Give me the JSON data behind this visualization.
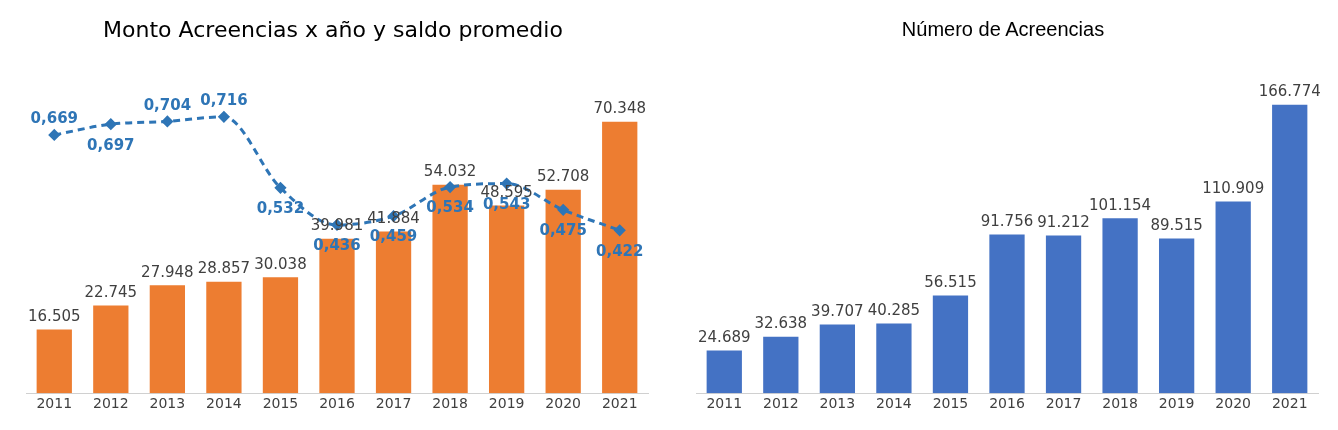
{
  "chart_data": [
    {
      "type": "bar",
      "title": "Monto Acreencias x año y saldo promedio",
      "categories": [
        "2011",
        "2012",
        "2013",
        "2014",
        "2015",
        "2016",
        "2017",
        "2018",
        "2019",
        "2020",
        "2021"
      ],
      "tick_labels": "x",
      "grid": false,
      "legend": false,
      "series": [
        {
          "color": "#ed7d31",
          "values": [
            16505,
            22745,
            27948,
            28857,
            30038,
            39981,
            41884,
            54032,
            48595,
            52708,
            70348
          ],
          "value_labels": [
            "16.505",
            "22.745",
            "27.948",
            "28.857",
            "30.038",
            "39.981",
            "41.884",
            "54.032",
            "48.595",
            "52.708",
            "70.348"
          ]
        },
        {
          "type": "line",
          "axis": "y2",
          "color": "#2e75b6",
          "line_style": "dashed",
          "marker": "diamond",
          "values": [
            0.669,
            0.697,
            0.704,
            0.716,
            0.532,
            0.436,
            0.459,
            0.534,
            0.543,
            0.475,
            0.422
          ],
          "value_labels": [
            "0,669",
            "0,697",
            "0,704",
            "0,716",
            "0,532",
            "0,436",
            "0,459",
            "0,534",
            "0,543",
            "0,475",
            "0,422"
          ]
        }
      ]
    },
    {
      "type": "bar",
      "title": "Número de Acreencias",
      "categories": [
        "2011",
        "2012",
        "2013",
        "2014",
        "2015",
        "2016",
        "2017",
        "2018",
        "2019",
        "2020",
        "2021"
      ],
      "tick_labels": "x",
      "grid": false,
      "legend": false,
      "series": [
        {
          "color": "#4472c4",
          "values": [
            24689,
            32638,
            39707,
            40285,
            56515,
            91756,
            91212,
            101154,
            89515,
            110909,
            166774
          ],
          "value_labels": [
            "24.689",
            "32.638",
            "39.707",
            "40.285",
            "56.515",
            "91.756",
            "91.212",
            "101.154",
            "89.515",
            "110.909",
            "166.774"
          ]
        }
      ]
    }
  ]
}
